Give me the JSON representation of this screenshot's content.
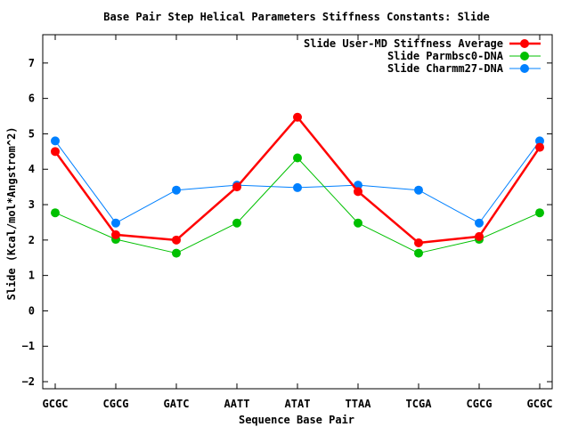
{
  "chart_data": {
    "type": "line",
    "title": "Base Pair Step Helical Parameters Stiffness Constants: Slide",
    "xlabel": "Sequence Base Pair",
    "ylabel": "Slide (Kcal/mol*Angstrom^2)",
    "categories": [
      "GCGC",
      "CGCG",
      "GATC",
      "AATT",
      "ATAT",
      "TTAA",
      "TCGA",
      "CGCG",
      "GCGC"
    ],
    "yticks": [
      "-2",
      "-1",
      "0",
      "1",
      "2",
      "3",
      "4",
      "5",
      "6",
      "7"
    ],
    "ylim": [
      -2.2,
      7.8
    ],
    "grid": false,
    "legend_position": "top-right",
    "series": [
      {
        "name": "Slide User-MD Stiffness Average",
        "color": "#ff0000",
        "line_width": "thick",
        "values": [
          4.5,
          2.15,
          2.0,
          3.5,
          5.47,
          3.37,
          1.92,
          2.1,
          4.62
        ]
      },
      {
        "name": "Slide Parmbsc0-DNA",
        "color": "#00c000",
        "line_width": "thin",
        "values": [
          2.77,
          2.02,
          1.63,
          2.48,
          4.32,
          2.48,
          1.63,
          2.02,
          2.77
        ]
      },
      {
        "name": "Slide Charmm27-DNA",
        "color": "#0080ff",
        "line_width": "thin",
        "values": [
          4.8,
          2.48,
          3.41,
          3.55,
          3.48,
          3.55,
          3.41,
          2.48,
          4.8
        ]
      }
    ]
  }
}
